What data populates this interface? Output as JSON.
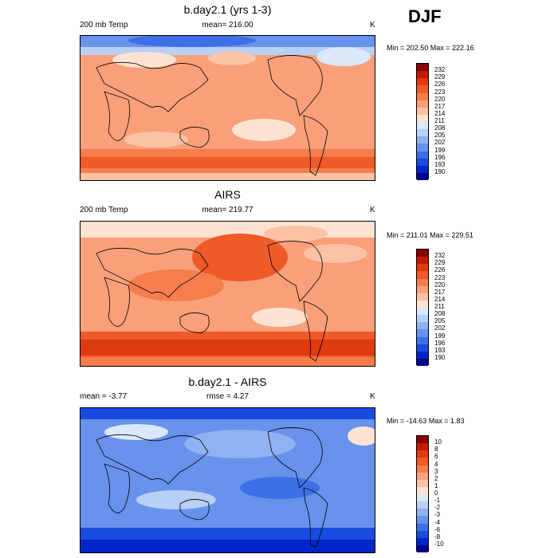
{
  "season": "DJF",
  "panels": [
    {
      "title": "b.day2.1 (yrs 1-3)",
      "left_label": "200 mb Temp",
      "center_label": "mean= 216.00",
      "units": "K",
      "minmax": "Min = 202.50 Max = 222.16",
      "colorbar": {
        "labels": [
          "232",
          "229",
          "226",
          "223",
          "220",
          "217",
          "214",
          "211",
          "208",
          "205",
          "202",
          "199",
          "196",
          "193",
          "190"
        ],
        "colors": [
          "#8b0000",
          "#c41a00",
          "#e03a10",
          "#ee5a28",
          "#f57e4c",
          "#f9a07a",
          "#fcc2a6",
          "#fde3d2",
          "#dbe8fa",
          "#b9d0f6",
          "#8fb2f1",
          "#6892ec",
          "#3f6fe6",
          "#1a4be0",
          "#0025c8",
          "#00008b"
        ]
      }
    },
    {
      "title": "AIRS",
      "left_label": "200 mb Temp",
      "center_label": "mean= 219.77",
      "units": "K",
      "minmax": "Min = 211.01 Max = 229.51",
      "colorbar": {
        "labels": [
          "232",
          "229",
          "226",
          "223",
          "220",
          "217",
          "214",
          "211",
          "208",
          "205",
          "202",
          "199",
          "196",
          "193",
          "190"
        ],
        "colors": [
          "#8b0000",
          "#c41a00",
          "#e03a10",
          "#ee5a28",
          "#f57e4c",
          "#f9a07a",
          "#fcc2a6",
          "#fde3d2",
          "#dbe8fa",
          "#b9d0f6",
          "#8fb2f1",
          "#6892ec",
          "#3f6fe6",
          "#1a4be0",
          "#0025c8",
          "#00008b"
        ]
      }
    },
    {
      "title": "b.day2.1 - AIRS",
      "left_label": "mean =  -3.77",
      "center_label": "rmse =   4.27",
      "units": "K",
      "minmax": "Min = -14.63 Max =   1.83",
      "colorbar": {
        "labels": [
          "10",
          "8",
          "6",
          "4",
          "3",
          "2",
          "1",
          "0",
          "-1",
          "-2",
          "-3",
          "-4",
          "-6",
          "-8",
          "-10"
        ],
        "colors": [
          "#8b0000",
          "#c41a00",
          "#e03a10",
          "#ee5a28",
          "#f57e4c",
          "#f9a07a",
          "#fcc2a6",
          "#fde3d2",
          "#dbe8fa",
          "#b9d0f6",
          "#8fb2f1",
          "#6892ec",
          "#3f6fe6",
          "#1a4be0",
          "#0025c8",
          "#00008b"
        ]
      }
    }
  ]
}
